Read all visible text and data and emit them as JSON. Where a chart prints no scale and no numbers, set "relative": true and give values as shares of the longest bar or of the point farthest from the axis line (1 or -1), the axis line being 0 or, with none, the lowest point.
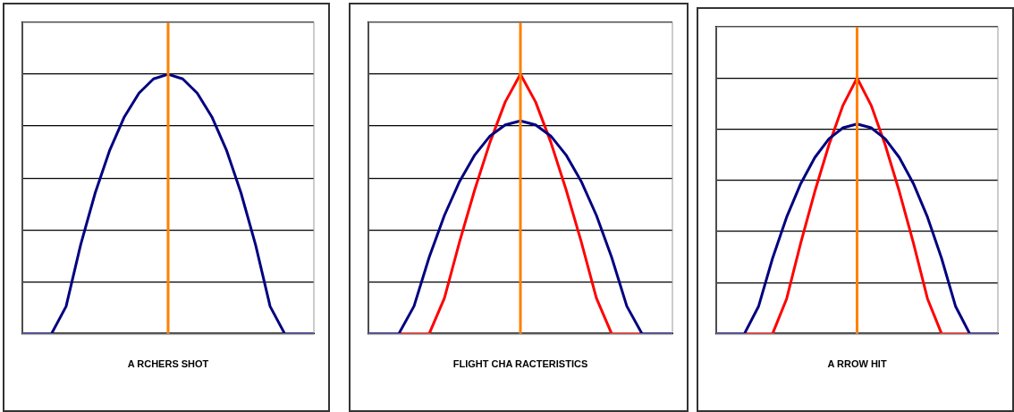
{
  "chart_data": [
    {
      "type": "line",
      "xlabel": "A RCHERS SHOT",
      "relative": true,
      "grid": "y",
      "legend": false,
      "marker": "none",
      "line_style": "solid",
      "categories": [
        null,
        null,
        null,
        null,
        null,
        null,
        null,
        null,
        null,
        null,
        null,
        null,
        null,
        null,
        null,
        null,
        null,
        null,
        null,
        null,
        null
      ],
      "series": [
        {
          "color": "#000080",
          "values": [
            0,
            0,
            0,
            0.105,
            0.343,
            0.543,
            0.708,
            0.836,
            0.927,
            0.982,
            1,
            0.982,
            0.927,
            0.836,
            0.708,
            0.543,
            0.343,
            0.105,
            0,
            0,
            0
          ]
        }
      ],
      "ref_lines": [
        {
          "axis": "x",
          "color": "#ff8000"
        }
      ]
    },
    {
      "type": "line",
      "xlabel": "FLIGHT CHA RACTERISTICS",
      "relative": true,
      "grid": "y",
      "legend": false,
      "marker": "none",
      "line_style": "solid",
      "categories": [
        null,
        null,
        null,
        null,
        null,
        null,
        null,
        null,
        null,
        null,
        null,
        null,
        null,
        null,
        null,
        null,
        null,
        null,
        null,
        null,
        null
      ],
      "series": [
        {
          "color": "#000080",
          "values": [
            0,
            0,
            0,
            0.106,
            0.295,
            0.456,
            0.587,
            0.689,
            0.762,
            0.805,
            0.82,
            0.805,
            0.762,
            0.689,
            0.587,
            0.456,
            0.295,
            0.106,
            0,
            0,
            0
          ]
        },
        {
          "color": "#ff0000",
          "values": [
            0,
            0,
            0,
            0,
            0,
            0.137,
            0.355,
            0.556,
            0.738,
            0.893,
            1,
            0.893,
            0.738,
            0.556,
            0.355,
            0.137,
            0,
            0,
            0,
            0,
            0
          ]
        }
      ],
      "ref_lines": [
        {
          "axis": "x",
          "color": "#ff8000"
        }
      ]
    },
    {
      "type": "line",
      "xlabel": "A RROW HIT",
      "relative": true,
      "grid": "y",
      "legend": false,
      "marker": "none",
      "line_style": "solid",
      "categories": [
        null,
        null,
        null,
        null,
        null,
        null,
        null,
        null,
        null,
        null,
        null,
        null,
        null,
        null,
        null,
        null,
        null,
        null,
        null,
        null,
        null
      ],
      "series": [
        {
          "color": "#000080",
          "values": [
            0,
            0,
            0,
            0.106,
            0.295,
            0.456,
            0.587,
            0.689,
            0.762,
            0.805,
            0.82,
            0.805,
            0.762,
            0.689,
            0.587,
            0.456,
            0.295,
            0.106,
            0,
            0,
            0
          ]
        },
        {
          "color": "#ff0000",
          "values": [
            0,
            0,
            0,
            0,
            0,
            0.137,
            0.355,
            0.556,
            0.738,
            0.893,
            1,
            0.893,
            0.738,
            0.556,
            0.355,
            0.137,
            0,
            0,
            0,
            0,
            0
          ]
        }
      ],
      "ref_lines": [
        {
          "axis": "x",
          "color": "#ff8000"
        }
      ]
    }
  ]
}
